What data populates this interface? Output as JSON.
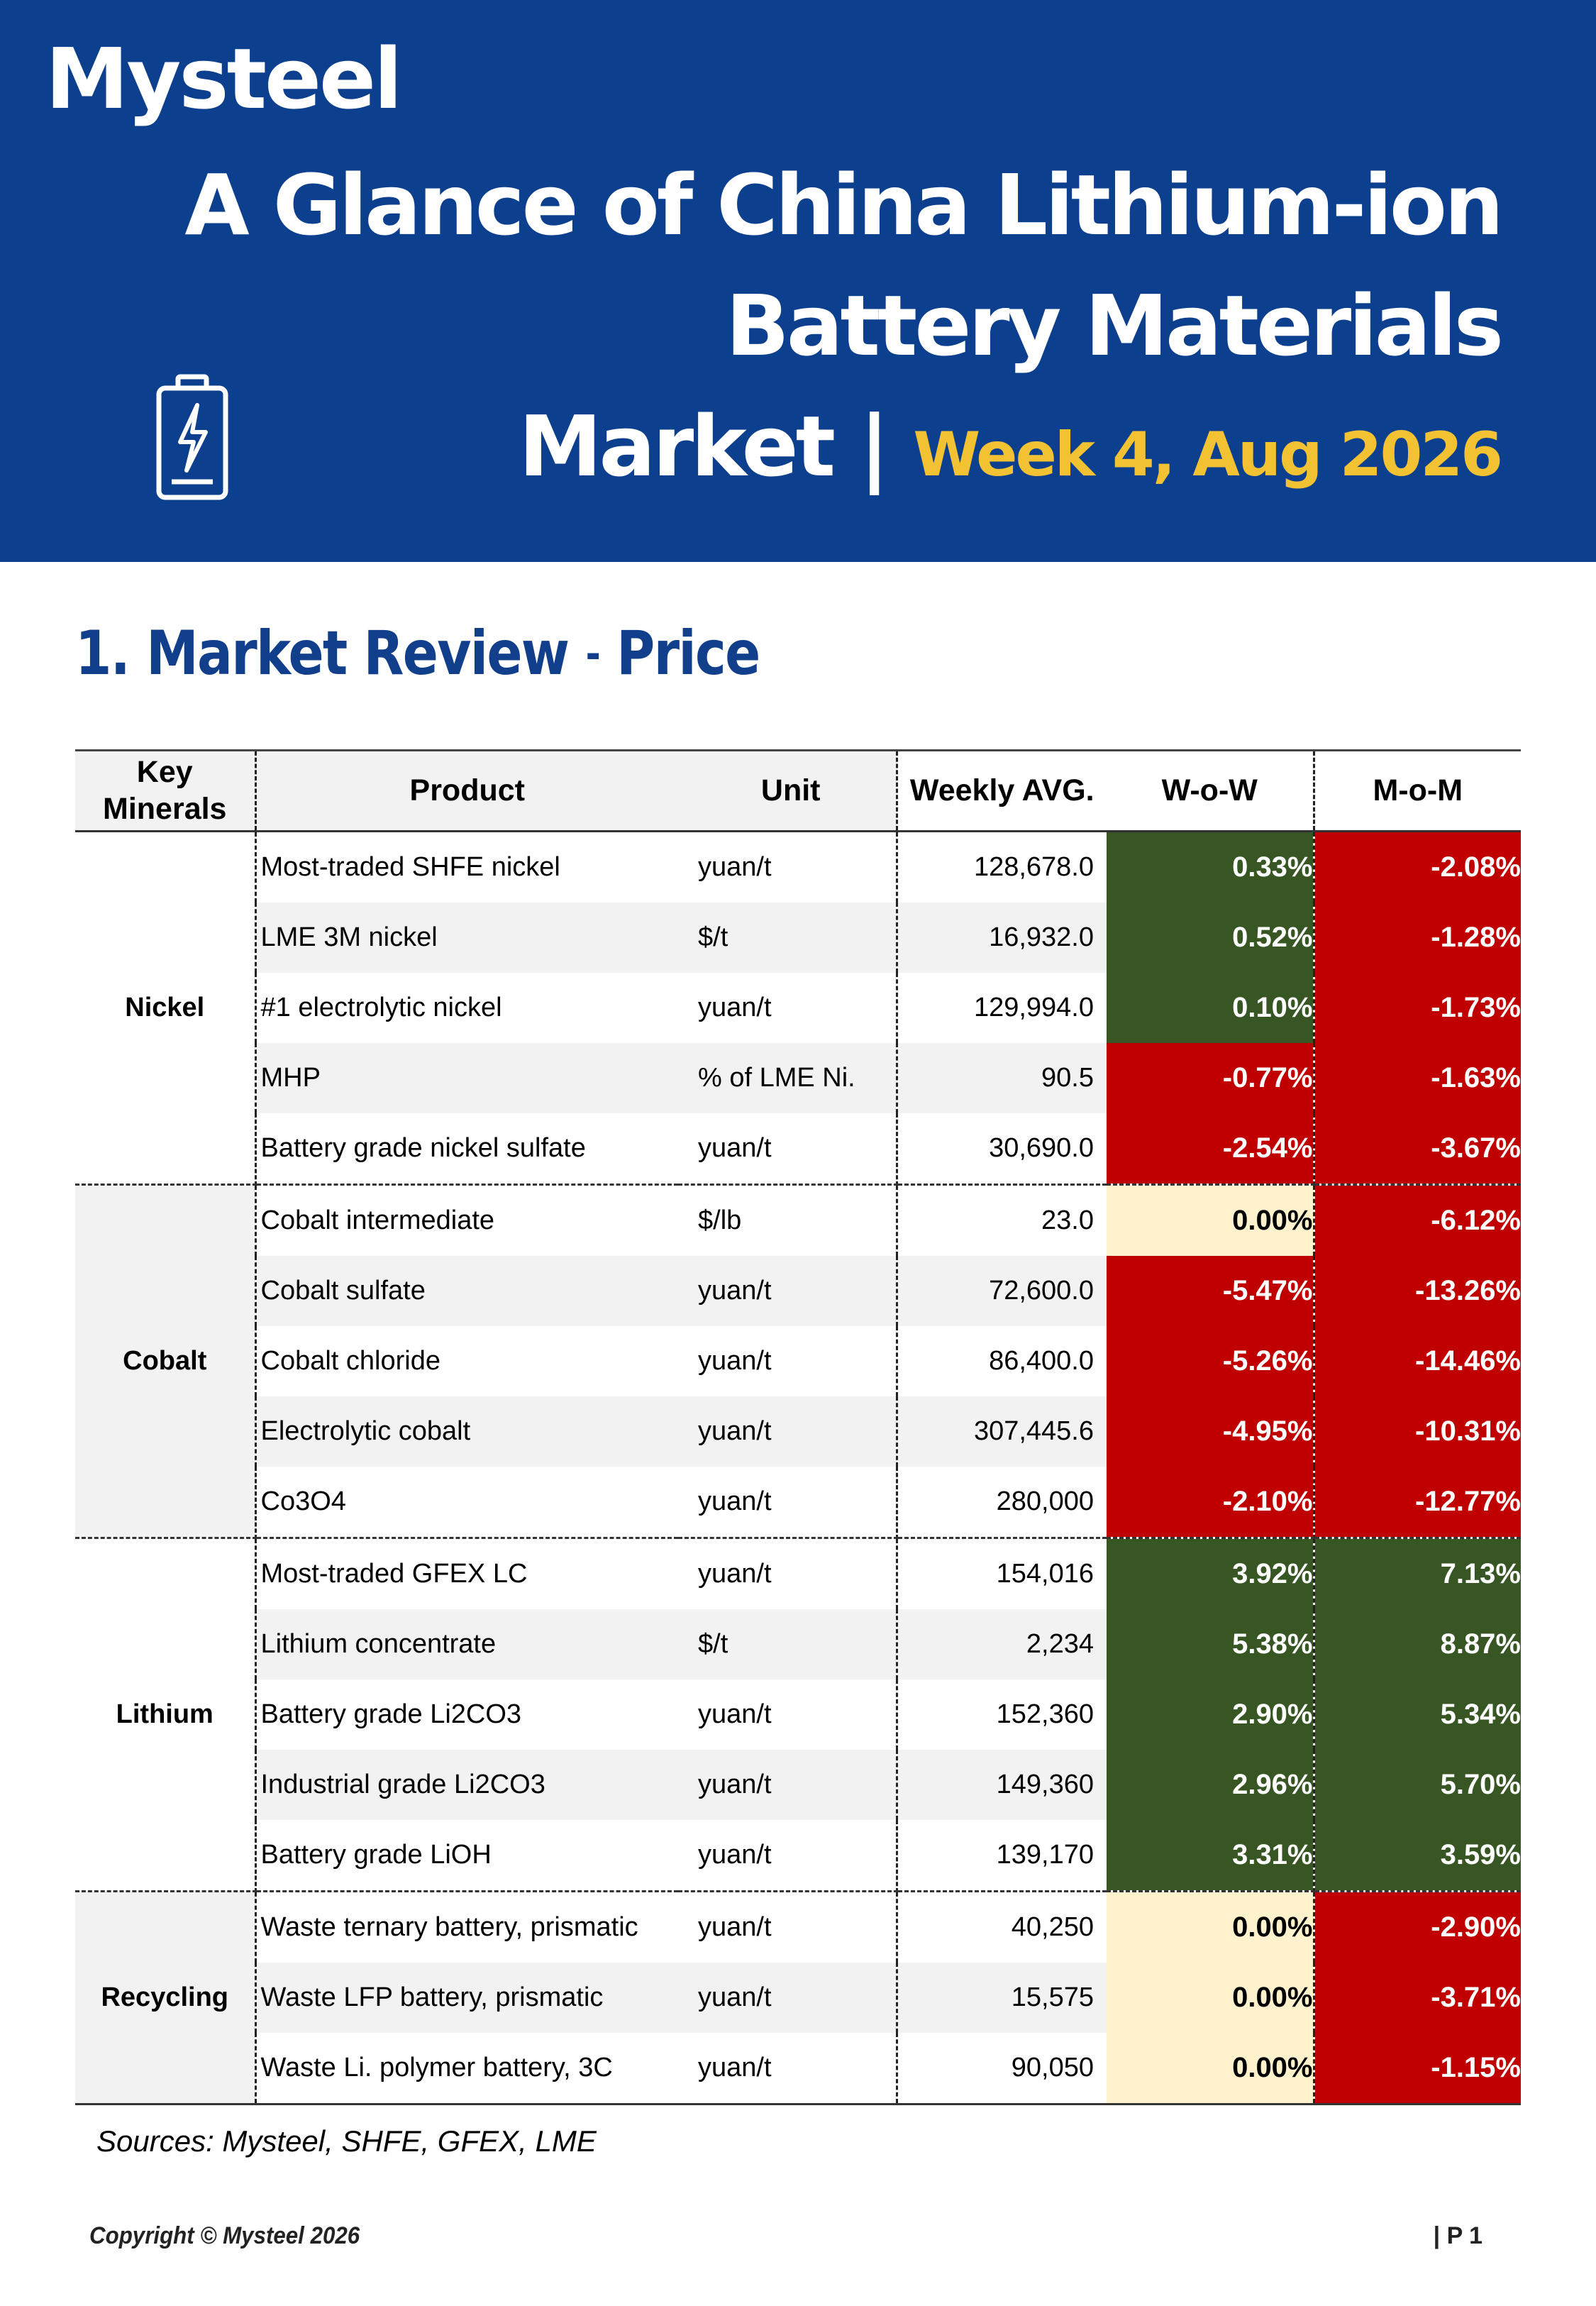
{
  "header": {
    "logo_text": "Mysteel",
    "title_line1": "A Glance of China Lithium-ion",
    "title_line2": "Battery Materials",
    "title_line3": "Market |",
    "week": "Week 4, Aug 2026",
    "colors": {
      "banner": "#0d3f8f",
      "week_accent": "#f2c232"
    },
    "icon": "battery-charging-icon"
  },
  "section": {
    "title": "1. Market Review",
    "dash": "-",
    "subtitle": "Price"
  },
  "table": {
    "headers": {
      "minerals": "Key Minerals",
      "product": "Product",
      "unit": "Unit",
      "avg": "Weekly AVG.",
      "wow": "W-o-W",
      "mom": "M-o-M"
    },
    "groups": [
      {
        "name": "Nickel",
        "rows": [
          {
            "product": "Most-traded SHFE nickel",
            "unit": "yuan/t",
            "avg": "128,678.0",
            "wow": "0.33%",
            "mom": "-2.08%"
          },
          {
            "product": "LME 3M nickel",
            "unit": "$/t",
            "avg": "16,932.0",
            "wow": "0.52%",
            "mom": "-1.28%"
          },
          {
            "product": "#1 electrolytic nickel",
            "unit": "yuan/t",
            "avg": "129,994.0",
            "wow": "0.10%",
            "mom": "-1.73%"
          },
          {
            "product": "MHP",
            "unit": "% of LME Ni.",
            "avg": "90.5",
            "wow": "-0.77%",
            "mom": "-1.63%"
          },
          {
            "product": "Battery grade nickel sulfate",
            "unit": "yuan/t",
            "avg": "30,690.0",
            "wow": "-2.54%",
            "mom": "-3.67%"
          }
        ]
      },
      {
        "name": "Cobalt",
        "rows": [
          {
            "product": "Cobalt intermediate",
            "unit": "$/lb",
            "avg": "23.0",
            "wow": "0.00%",
            "mom": "-6.12%"
          },
          {
            "product": "Cobalt sulfate",
            "unit": "yuan/t",
            "avg": "72,600.0",
            "wow": "-5.47%",
            "mom": "-13.26%"
          },
          {
            "product": "Cobalt chloride",
            "unit": "yuan/t",
            "avg": "86,400.0",
            "wow": "-5.26%",
            "mom": "-14.46%"
          },
          {
            "product": "Electrolytic cobalt",
            "unit": "yuan/t",
            "avg": "307,445.6",
            "wow": "-4.95%",
            "mom": "-10.31%"
          },
          {
            "product": "Co3O4",
            "unit": "yuan/t",
            "avg": "280,000",
            "wow": "-2.10%",
            "mom": "-12.77%"
          }
        ]
      },
      {
        "name": "Lithium",
        "rows": [
          {
            "product": "Most-traded GFEX LC",
            "unit": "yuan/t",
            "avg": "154,016",
            "wow": "3.92%",
            "mom": "7.13%"
          },
          {
            "product": "Lithium concentrate",
            "unit": "$/t",
            "avg": "2,234",
            "wow": "5.38%",
            "mom": "8.87%"
          },
          {
            "product": "Battery grade Li2CO3",
            "unit": "yuan/t",
            "avg": "152,360",
            "wow": "2.90%",
            "mom": "5.34%"
          },
          {
            "product": "Industrial grade Li2CO3",
            "unit": "yuan/t",
            "avg": "149,360",
            "wow": "2.96%",
            "mom": "5.70%"
          },
          {
            "product": "Battery grade LiOH",
            "unit": "yuan/t",
            "avg": "139,170",
            "wow": "3.31%",
            "mom": "3.59%"
          }
        ]
      },
      {
        "name": "Recycling",
        "rows": [
          {
            "product": "Waste ternary battery, prismatic",
            "unit": "yuan/t",
            "avg": "40,250",
            "wow": "0.00%",
            "mom": "-2.90%"
          },
          {
            "product": "Waste LFP battery, prismatic",
            "unit": "yuan/t",
            "avg": "15,575",
            "wow": "0.00%",
            "mom": "-3.71%"
          },
          {
            "product": "Waste Li. polymer battery, 3C",
            "unit": "yuan/t",
            "avg": "90,050",
            "wow": "0.00%",
            "mom": "-1.15%"
          }
        ]
      }
    ],
    "colors": {
      "positive": "#375623",
      "negative": "#c00000",
      "zero": "#fff2cc"
    }
  },
  "sources": "Sources: Mysteel, SHFE, GFEX, LME",
  "footer": {
    "copyright": "Copyright © Mysteel 2026",
    "page": "| P 1"
  }
}
